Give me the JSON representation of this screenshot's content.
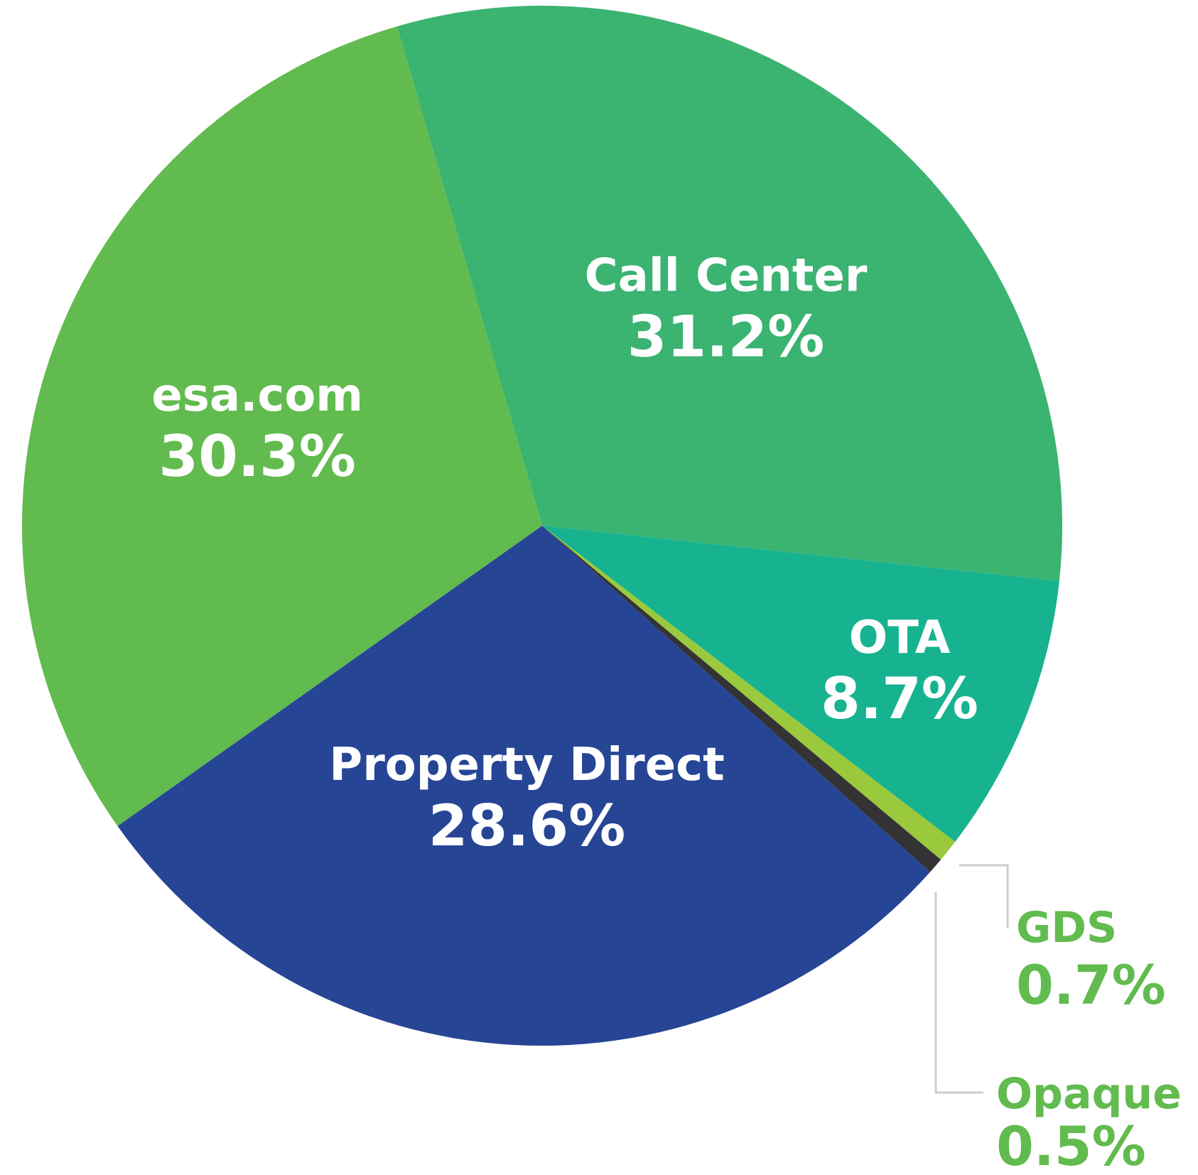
{
  "chart_data": {
    "type": "pie",
    "title": "",
    "slices": [
      {
        "label": "Call Center",
        "value_label": "31.2%",
        "value": 31.2,
        "color": "#3bb371",
        "text_color": "#ffffff",
        "callout": false
      },
      {
        "label": "OTA",
        "value_label": "8.7%",
        "value": 8.7,
        "color": "#17b390",
        "text_color": "#ffffff",
        "callout": false
      },
      {
        "label": "GDS",
        "value_label": "0.7%",
        "value": 0.7,
        "color": "#9ac93d",
        "text_color": "#62bb4e",
        "callout": true
      },
      {
        "label": "Opaque",
        "value_label": "0.5%",
        "value": 0.5,
        "color": "#333333",
        "text_color": "#62bb4e",
        "callout": true
      },
      {
        "label": "Property Direct",
        "value_label": "28.6%",
        "value": 28.6,
        "color": "#264595",
        "text_color": "#ffffff",
        "callout": false
      },
      {
        "label": "esa.com",
        "value_label": "30.3%",
        "value": 30.3,
        "color": "#62bb4e",
        "text_color": "#ffffff",
        "callout": false
      }
    ],
    "leader_line_color": "#cccccc"
  }
}
